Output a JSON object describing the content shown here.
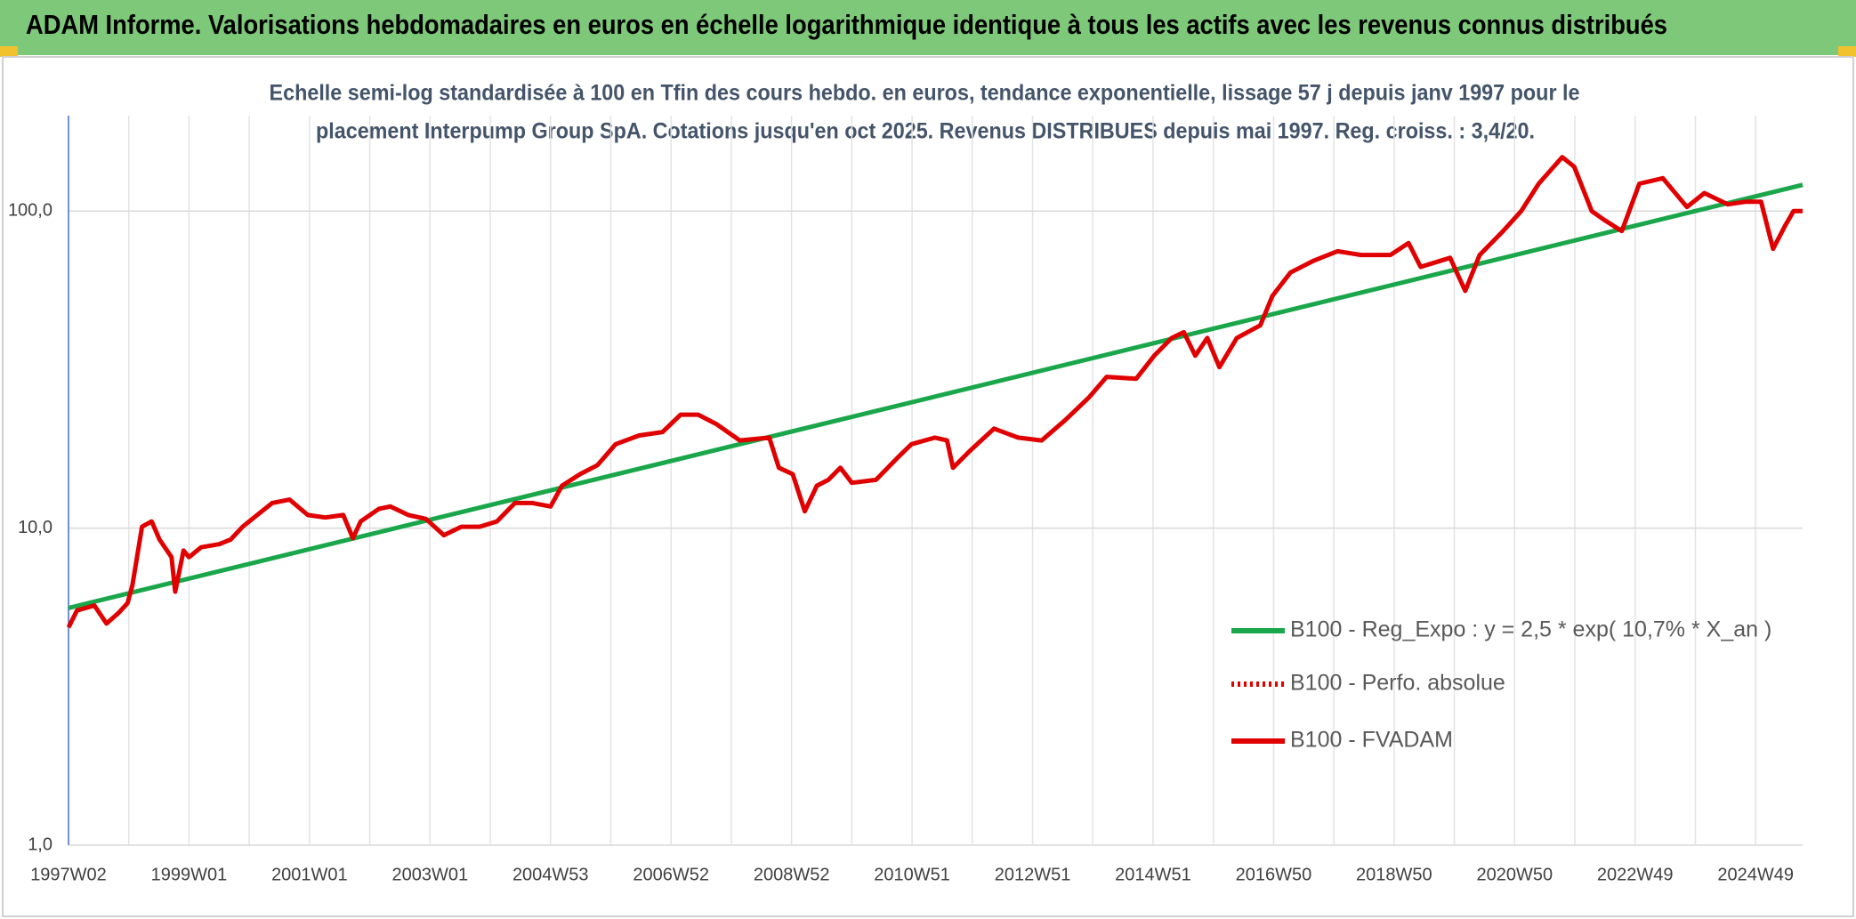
{
  "header": {
    "title": "ADAM Informe. Valorisations hebdomadaires en euros en échelle logarithmique identique à tous les actifs avec les revenus connus distribués"
  },
  "chart_data": {
    "type": "line",
    "subtitle": [
      "Echelle semi-log standardisée à 100 en Tfin des cours hebdo. en euros, tendance exponentielle, lissage 57 j depuis janv 1997 pour le",
      "placement Interpump Group SpA. Cotations jusqu'en oct 2025. Revenus DISTRIBUES depuis mai 1997. Reg. croiss. : 3,4/20."
    ],
    "log_scale": true,
    "grid": true,
    "legend_position": "lower right",
    "ylim": [
      1,
      200
    ],
    "yticks": [
      {
        "value": 1,
        "label": "1,0"
      },
      {
        "value": 10,
        "label": "10,0"
      },
      {
        "value": 100,
        "label": "100,0"
      }
    ],
    "xlim": [
      1997.0,
      2025.78
    ],
    "xticks": [
      {
        "value": 1997.0,
        "label": "1997W02"
      },
      {
        "value": 1999.0,
        "label": "1999W01"
      },
      {
        "value": 2001.0,
        "label": "2001W01"
      },
      {
        "value": 2003.0,
        "label": "2003W01"
      },
      {
        "value": 2005.0,
        "label": "2004W53"
      },
      {
        "value": 2007.0,
        "label": "2006W52"
      },
      {
        "value": 2009.0,
        "label": "2008W52"
      },
      {
        "value": 2011.0,
        "label": "2010W51"
      },
      {
        "value": 2013.0,
        "label": "2012W51"
      },
      {
        "value": 2015.0,
        "label": "2014W51"
      },
      {
        "value": 2017.0,
        "label": "2016W50"
      },
      {
        "value": 2019.0,
        "label": "2018W50"
      },
      {
        "value": 2021.0,
        "label": "2020W50"
      },
      {
        "value": 2023.0,
        "label": "2022W49"
      },
      {
        "value": 2025.0,
        "label": "2024W49"
      }
    ],
    "x_minor_gridlines": [
      1998.0,
      2000.0,
      2002.0,
      2004.0,
      2006.0,
      2008.0,
      2010.0,
      2012.0,
      2014.0,
      2016.0,
      2018.0,
      2020.0,
      2022.0,
      2024.0
    ],
    "series": [
      {
        "name": "B100 - Reg_Expo : y = 2,5 * exp( 10,7% *  X_an )",
        "color": "#1aa64a",
        "style": "solid",
        "x": [
          1997.0,
          2025.78
        ],
        "values": [
          5.6,
          121
        ]
      },
      {
        "name": "B100 - Perfo. absolue",
        "color": "#e00000",
        "style": "dotted",
        "x": [],
        "values": []
      },
      {
        "name": "B100 - FVADAM",
        "color": "#e00000",
        "style": "solid",
        "x": [
          1997.0,
          1997.14,
          1997.43,
          1997.63,
          1997.83,
          1997.98,
          1998.06,
          1998.22,
          1998.38,
          1998.51,
          1998.71,
          1998.77,
          1998.91,
          1999.0,
          1999.2,
          1999.5,
          1999.69,
          1999.89,
          2000.08,
          2000.38,
          2000.67,
          2000.97,
          2001.26,
          2001.56,
          2001.72,
          2001.85,
          2002.15,
          2002.34,
          2002.64,
          2002.93,
          2003.23,
          2003.52,
          2003.82,
          2004.11,
          2004.41,
          2004.7,
          2005.0,
          2005.19,
          2005.49,
          2005.78,
          2006.08,
          2006.47,
          2006.86,
          2007.16,
          2007.45,
          2007.75,
          2008.14,
          2008.63,
          2008.79,
          2009.02,
          2009.22,
          2009.42,
          2009.61,
          2009.81,
          2010.0,
          2010.4,
          2010.79,
          2010.99,
          2011.38,
          2011.58,
          2011.68,
          2011.97,
          2012.36,
          2012.76,
          2013.15,
          2013.54,
          2013.94,
          2014.23,
          2014.72,
          2015.02,
          2015.31,
          2015.51,
          2015.7,
          2015.9,
          2016.1,
          2016.39,
          2016.78,
          2016.98,
          2017.28,
          2017.67,
          2018.06,
          2018.45,
          2018.94,
          2019.24,
          2019.44,
          2019.93,
          2020.18,
          2020.42,
          2020.81,
          2021.11,
          2021.4,
          2021.79,
          2021.99,
          2022.28,
          2022.48,
          2022.78,
          2023.07,
          2023.46,
          2023.86,
          2024.15,
          2024.54,
          2024.83,
          2025.09,
          2025.29,
          2025.49,
          2025.63,
          2025.78
        ],
        "values": [
          4.86,
          5.5,
          5.7,
          5.0,
          5.4,
          5.8,
          6.6,
          10.1,
          10.5,
          9.2,
          8.1,
          6.3,
          8.5,
          8.1,
          8.7,
          8.9,
          9.2,
          10.1,
          10.8,
          12.0,
          12.3,
          11.0,
          10.8,
          11.0,
          9.3,
          10.5,
          11.5,
          11.7,
          11.0,
          10.7,
          9.5,
          10.1,
          10.1,
          10.5,
          12.0,
          12.0,
          11.7,
          13.6,
          14.8,
          15.8,
          18.4,
          19.6,
          20.1,
          22.8,
          22.8,
          21.3,
          18.9,
          19.3,
          15.5,
          14.8,
          11.3,
          13.6,
          14.2,
          15.5,
          13.9,
          14.2,
          16.9,
          18.4,
          19.3,
          18.9,
          15.5,
          17.6,
          20.6,
          19.3,
          18.9,
          21.9,
          25.9,
          30.0,
          29.6,
          35.0,
          39.8,
          41.5,
          35.0,
          39.8,
          32.2,
          39.8,
          43.6,
          54.0,
          64.0,
          69.8,
          74.7,
          72.7,
          72.7,
          79.3,
          66.7,
          71.2,
          56.0,
          72.7,
          86.5,
          100,
          122,
          148,
          138,
          100,
          94,
          86.5,
          122,
          127,
          103,
          114,
          105,
          107,
          107,
          76,
          90,
          100,
          100
        ]
      }
    ]
  }
}
